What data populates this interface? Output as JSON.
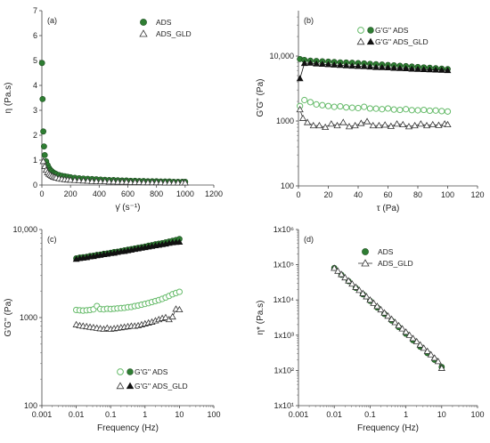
{
  "chart_data": [
    {
      "type": "scatter",
      "panel_label": "(a)",
      "xlabel": "γ̇ (s⁻¹)",
      "ylabel": "η (Pa.s)",
      "xlim": [
        0,
        1200
      ],
      "ylim": [
        0,
        7
      ],
      "xticks": [
        0,
        200,
        400,
        600,
        800,
        1000,
        1200
      ],
      "xtick_labels": [
        "0",
        "200",
        "400",
        "600",
        "800",
        "1000",
        "1200"
      ],
      "yticks": [
        0,
        1,
        2,
        3,
        4,
        5,
        6,
        7
      ],
      "ytick_labels": [
        "0",
        "1",
        "2",
        "3",
        "4",
        "5",
        "6",
        "7"
      ],
      "legend_position": "top-right",
      "series": [
        {
          "name": "ADS",
          "marker": "circle-filled",
          "color": "#2e7d32",
          "x": [
            1,
            5,
            10,
            15,
            20,
            30,
            40,
            50,
            60,
            70,
            80,
            90,
            100,
            120,
            140,
            160,
            180,
            200,
            230,
            260,
            290,
            320,
            350,
            380,
            410,
            440,
            470,
            500,
            530,
            560,
            590,
            620,
            650,
            680,
            710,
            740,
            770,
            800,
            830,
            860,
            890,
            920,
            950,
            980,
            1000
          ],
          "y": [
            4.9,
            3.45,
            2.15,
            1.55,
            1.2,
            0.95,
            0.8,
            0.68,
            0.6,
            0.55,
            0.5,
            0.47,
            0.44,
            0.4,
            0.37,
            0.35,
            0.33,
            0.31,
            0.29,
            0.27,
            0.26,
            0.25,
            0.24,
            0.23,
            0.22,
            0.21,
            0.2,
            0.2,
            0.19,
            0.18,
            0.18,
            0.17,
            0.17,
            0.16,
            0.16,
            0.15,
            0.15,
            0.15,
            0.14,
            0.14,
            0.14,
            0.13,
            0.13,
            0.13,
            0.13
          ]
        },
        {
          "name": "ADS_GLD",
          "marker": "triangle-open",
          "color": "#333333",
          "x": [
            10,
            20,
            30,
            40,
            50,
            60,
            70,
            80,
            90,
            100,
            120,
            140,
            160,
            180,
            200,
            230,
            260,
            290,
            320,
            350,
            380,
            410,
            440,
            470,
            500,
            530,
            560,
            590,
            620,
            650,
            680,
            710,
            740,
            770,
            800,
            830,
            860,
            890,
            920,
            950,
            980,
            1000
          ],
          "y": [
            0.95,
            0.75,
            0.6,
            0.5,
            0.44,
            0.4,
            0.36,
            0.33,
            0.31,
            0.29,
            0.26,
            0.24,
            0.22,
            0.21,
            0.2,
            0.19,
            0.18,
            0.17,
            0.16,
            0.15,
            0.15,
            0.14,
            0.14,
            0.13,
            0.13,
            0.12,
            0.12,
            0.12,
            0.11,
            0.11,
            0.11,
            0.1,
            0.1,
            0.1,
            0.1,
            0.1,
            0.09,
            0.09,
            0.09,
            0.09,
            0.09,
            0.09
          ]
        }
      ]
    },
    {
      "type": "scatter",
      "panel_label": "(b)",
      "xlabel": "τ (Pa)",
      "ylabel": "G'G'' (Pa)",
      "xlim": [
        0,
        120
      ],
      "yscale": "log",
      "ylim": [
        100,
        50000
      ],
      "xticks": [
        0,
        20,
        40,
        60,
        80,
        100,
        120
      ],
      "xtick_labels": [
        "0",
        "20",
        "40",
        "60",
        "80",
        "100",
        "120"
      ],
      "yticks": [
        100,
        1000,
        10000
      ],
      "ytick_labels": [
        "100",
        "1000",
        "10,000"
      ],
      "legend_position": "top-right",
      "legend_rows": [
        {
          "label": "G'G'' ADS",
          "markers": [
            "circle-open-light",
            "circle-filled"
          ]
        },
        {
          "label": "G'G'' ADS_GLD",
          "markers": [
            "triangle-open",
            "triangle-filled"
          ]
        }
      ],
      "series": [
        {
          "name": "G' ADS",
          "marker": "circle-filled",
          "color": "#2e7d32",
          "line": false,
          "x": [
            1,
            4,
            8,
            12,
            16,
            20,
            24,
            28,
            32,
            36,
            40,
            44,
            48,
            52,
            56,
            60,
            64,
            68,
            72,
            76,
            80,
            84,
            88,
            92,
            96,
            100
          ],
          "y": [
            9000,
            8700,
            8500,
            8400,
            8300,
            8200,
            8100,
            8000,
            7950,
            7900,
            7800,
            7700,
            7600,
            7500,
            7400,
            7300,
            7200,
            7100,
            7000,
            6900,
            6800,
            6700,
            6600,
            6500,
            6400,
            6300
          ]
        },
        {
          "name": "G'' ADS",
          "marker": "circle-open-light",
          "color": "#66bb6a",
          "line": false,
          "x": [
            1,
            4,
            8,
            12,
            16,
            20,
            24,
            28,
            32,
            36,
            40,
            44,
            48,
            52,
            56,
            60,
            64,
            68,
            72,
            76,
            80,
            84,
            88,
            92,
            96,
            100
          ],
          "y": [
            1700,
            2100,
            1950,
            1800,
            1750,
            1700,
            1650,
            1680,
            1620,
            1600,
            1580,
            1650,
            1560,
            1550,
            1520,
            1560,
            1500,
            1480,
            1520,
            1470,
            1460,
            1480,
            1440,
            1450,
            1420,
            1400
          ]
        },
        {
          "name": "G' ADS_GLD",
          "marker": "triangle-filled",
          "color": "#111111",
          "line": true,
          "x": [
            1,
            4,
            8,
            12,
            16,
            20,
            24,
            28,
            32,
            36,
            40,
            44,
            48,
            52,
            56,
            60,
            64,
            68,
            72,
            76,
            80,
            84,
            88,
            92,
            96,
            100
          ],
          "y": [
            4500,
            7700,
            7800,
            7600,
            7500,
            7400,
            7300,
            7200,
            7100,
            7000,
            6950,
            6900,
            6800,
            6700,
            6650,
            6600,
            6500,
            6450,
            6400,
            6300,
            6250,
            6200,
            6150,
            6100,
            6050,
            6000
          ]
        },
        {
          "name": "G'' ADS_GLD",
          "marker": "triangle-open",
          "color": "#333333",
          "line": true,
          "x": [
            1,
            3,
            6,
            10,
            14,
            18,
            22,
            26,
            30,
            34,
            38,
            42,
            46,
            50,
            54,
            58,
            62,
            66,
            70,
            74,
            78,
            82,
            86,
            90,
            94,
            98,
            100
          ],
          "y": [
            1500,
            1100,
            950,
            850,
            850,
            800,
            900,
            850,
            950,
            820,
            850,
            920,
            980,
            850,
            850,
            870,
            830,
            900,
            880,
            820,
            850,
            900,
            850,
            880,
            860,
            900,
            880
          ]
        }
      ]
    },
    {
      "type": "scatter",
      "panel_label": "(c)",
      "xlabel": "Frequency (Hz)",
      "ylabel": "G'G'' (Pa)",
      "xscale": "log",
      "yscale": "log",
      "xlim": [
        0.001,
        100
      ],
      "ylim": [
        100,
        10000
      ],
      "xticks": [
        0.001,
        0.01,
        0.1,
        1,
        10,
        100
      ],
      "xtick_labels": [
        "0.001",
        "0.01",
        "0.1",
        "1",
        "10",
        "100"
      ],
      "yticks": [
        100,
        1000,
        10000
      ],
      "ytick_labels": [
        "100",
        "1000",
        "10,000"
      ],
      "legend_position": "bottom-right",
      "legend_rows": [
        {
          "label": "G'G'' ADS",
          "markers": [
            "circle-open-light",
            "circle-filled"
          ]
        },
        {
          "label": "G'G'' ADS_GLD",
          "markers": [
            "triangle-open",
            "triangle-filled"
          ]
        }
      ],
      "series": [
        {
          "name": "G' ADS",
          "marker": "circle-filled",
          "color": "#2e7d32",
          "line": false,
          "x": [
            0.01,
            0.0126,
            0.0158,
            0.02,
            0.0251,
            0.0316,
            0.0398,
            0.05,
            0.063,
            0.0794,
            0.1,
            0.126,
            0.158,
            0.2,
            0.251,
            0.316,
            0.398,
            0.5,
            0.63,
            0.794,
            1,
            1.26,
            1.58,
            2,
            2.51,
            3.16,
            3.98,
            5,
            6.3,
            7.94,
            10
          ],
          "y": [
            4700,
            4800,
            4850,
            4900,
            5000,
            5050,
            5150,
            5200,
            5300,
            5350,
            5450,
            5550,
            5600,
            5700,
            5800,
            5900,
            6000,
            6100,
            6200,
            6300,
            6400,
            6550,
            6650,
            6800,
            6900,
            7000,
            7150,
            7300,
            7450,
            7600,
            7800
          ]
        },
        {
          "name": "G'' ADS",
          "marker": "circle-open-light",
          "color": "#66bb6a",
          "line": false,
          "x": [
            0.01,
            0.0126,
            0.0158,
            0.02,
            0.0251,
            0.0316,
            0.0398,
            0.05,
            0.063,
            0.0794,
            0.1,
            0.126,
            0.158,
            0.2,
            0.251,
            0.316,
            0.398,
            0.5,
            0.63,
            0.794,
            1,
            1.26,
            1.58,
            2,
            2.51,
            3.16,
            3.98,
            5,
            6.3,
            7.94,
            10
          ],
          "y": [
            1220,
            1210,
            1200,
            1210,
            1220,
            1240,
            1350,
            1250,
            1240,
            1260,
            1250,
            1260,
            1270,
            1280,
            1290,
            1310,
            1320,
            1350,
            1370,
            1400,
            1430,
            1460,
            1500,
            1540,
            1580,
            1630,
            1690,
            1760,
            1840,
            1900,
            1960
          ]
        },
        {
          "name": "G' ADS_GLD",
          "marker": "triangle-filled",
          "color": "#111111",
          "line": true,
          "x": [
            0.01,
            0.0126,
            0.0158,
            0.02,
            0.0251,
            0.0316,
            0.0398,
            0.05,
            0.063,
            0.0794,
            0.1,
            0.126,
            0.158,
            0.2,
            0.251,
            0.316,
            0.398,
            0.5,
            0.63,
            0.794,
            1,
            1.26,
            1.58,
            2,
            2.51,
            3.16,
            3.98,
            5,
            6.3,
            7.94,
            10
          ],
          "y": [
            4600,
            4700,
            4750,
            4800,
            4900,
            4950,
            5050,
            5100,
            5200,
            5250,
            5350,
            5400,
            5500,
            5600,
            5650,
            5750,
            5850,
            5950,
            6050,
            6150,
            6250,
            6350,
            6450,
            6550,
            6650,
            6750,
            6850,
            7000,
            7100,
            7150,
            7200
          ]
        },
        {
          "name": "G'' ADS_GLD",
          "marker": "triangle-open",
          "color": "#333333",
          "line": true,
          "x": [
            0.01,
            0.0126,
            0.0158,
            0.02,
            0.0251,
            0.0316,
            0.0398,
            0.05,
            0.063,
            0.0794,
            0.1,
            0.126,
            0.158,
            0.2,
            0.251,
            0.316,
            0.398,
            0.5,
            0.63,
            0.794,
            1,
            1.26,
            1.58,
            2,
            2.51,
            3.16,
            3.98,
            5,
            6.3,
            7.94,
            10
          ],
          "y": [
            830,
            810,
            800,
            790,
            780,
            770,
            760,
            750,
            740,
            760,
            740,
            750,
            760,
            770,
            780,
            790,
            800,
            800,
            810,
            830,
            850,
            870,
            890,
            920,
            950,
            980,
            1000,
            950,
            1020,
            1250,
            1230
          ]
        }
      ]
    },
    {
      "type": "scatter",
      "panel_label": "(d)",
      "xlabel": "Frequency (Hz)",
      "ylabel": "η* (Pa.s)",
      "xscale": "log",
      "yscale": "log",
      "xlim": [
        0.001,
        100
      ],
      "ylim": [
        10,
        1000000
      ],
      "xticks": [
        0.001,
        0.01,
        0.1,
        1,
        10,
        100
      ],
      "xtick_labels": [
        "0.001",
        "0.01",
        "0.1",
        "1",
        "10",
        "100"
      ],
      "yticks": [
        10,
        100,
        1000,
        10000,
        100000,
        1000000
      ],
      "ytick_labels": [
        "1x10¹",
        "1x10²",
        "1x10³",
        "1x10⁴",
        "1x10⁵",
        "1x10⁶"
      ],
      "legend_position": "top-left",
      "series": [
        {
          "name": "ADS",
          "marker": "circle-filled",
          "color": "#2e7d32",
          "line": false,
          "x": [
            0.01,
            0.0158,
            0.0251,
            0.0398,
            0.063,
            0.1,
            0.158,
            0.251,
            0.398,
            0.63,
            1,
            1.58,
            2.51,
            3.98,
            6.3,
            10
          ],
          "y": [
            81000,
            52000,
            34000,
            22000,
            14500,
            9400,
            6100,
            4000,
            2600,
            1700,
            1100,
            720,
            470,
            310,
            200,
            125
          ]
        },
        {
          "name": "ADS_GLD",
          "marker": "triangle-open",
          "color": "#333333",
          "line": true,
          "x": [
            0.01,
            0.0126,
            0.0158,
            0.02,
            0.0251,
            0.0316,
            0.0398,
            0.05,
            0.063,
            0.0794,
            0.1,
            0.126,
            0.158,
            0.2,
            0.251,
            0.316,
            0.398,
            0.5,
            0.63,
            0.794,
            1,
            1.26,
            1.58,
            2,
            2.51,
            3.16,
            3.98,
            5,
            6.3,
            7.94,
            10
          ],
          "y": [
            80000,
            66000,
            53000,
            43000,
            35000,
            28500,
            23000,
            18800,
            15300,
            12400,
            10000,
            8100,
            6600,
            5300,
            4300,
            3500,
            2850,
            2300,
            1870,
            1520,
            1230,
            1000,
            810,
            660,
            530,
            430,
            350,
            280,
            225,
            180,
            115
          ]
        }
      ]
    }
  ]
}
